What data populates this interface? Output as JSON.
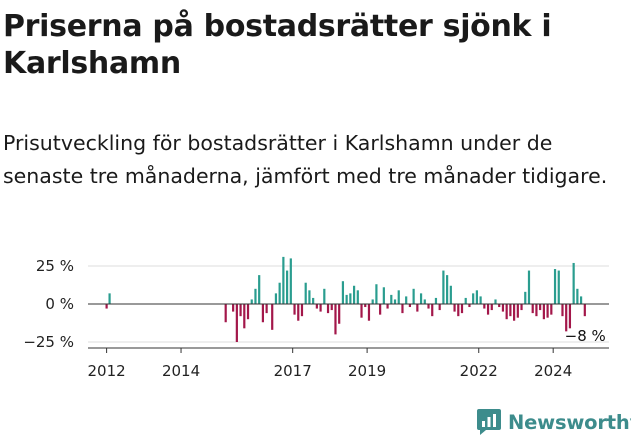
{
  "header": {
    "title": "Priserna på bostadsrätter sjönk i Karlshamn",
    "subtitle": "Prisutveckling för bostadsrätter i Karlshamn under de senaste tre månaderna, jämfört med tre månader tidigare."
  },
  "brand": {
    "name": "Newsworthy",
    "icon": "newsworthy-logo-icon",
    "color": "#3d8c8c"
  },
  "colors": {
    "positive": "#2a9d8f",
    "negative": "#a3174a",
    "zero_line": "#333333",
    "grid": "#dddddd"
  },
  "chart_data": {
    "type": "bar",
    "ylabel": "",
    "xlabel": "",
    "y_unit": "%",
    "ylim": [
      -28,
      33
    ],
    "y_ticks": [
      25,
      0,
      -25
    ],
    "y_tick_labels": [
      "25 %",
      "0 %",
      "−25 %"
    ],
    "x_range": [
      2011.5,
      2025.5
    ],
    "x_ticks": [
      2012,
      2014,
      2017,
      2019,
      2022,
      2024
    ],
    "x_tick_labels": [
      "2012",
      "2014",
      "2017",
      "2019",
      "2022",
      "2024"
    ],
    "grid": true,
    "end_label": "−8 %",
    "series": [
      {
        "x": [
          2012.0,
          2012.08,
          2015.2,
          2015.4,
          2015.5,
          2015.6,
          2015.7,
          2015.8,
          2015.9,
          2016.0,
          2016.1,
          2016.2,
          2016.3,
          2016.45,
          2016.55,
          2016.65,
          2016.75,
          2016.85,
          2016.95,
          2017.05,
          2017.15,
          2017.25,
          2017.35,
          2017.45,
          2017.55,
          2017.65,
          2017.75,
          2017.85,
          2017.95,
          2018.05,
          2018.15,
          2018.25,
          2018.35,
          2018.45,
          2018.55,
          2018.65,
          2018.75,
          2018.85,
          2018.95,
          2019.05,
          2019.15,
          2019.25,
          2019.35,
          2019.45,
          2019.55,
          2019.65,
          2019.75,
          2019.85,
          2019.95,
          2020.05,
          2020.15,
          2020.25,
          2020.35,
          2020.45,
          2020.55,
          2020.65,
          2020.75,
          2020.85,
          2020.95,
          2021.05,
          2021.15,
          2021.25,
          2021.35,
          2021.45,
          2021.55,
          2021.65,
          2021.75,
          2021.85,
          2021.95,
          2022.05,
          2022.15,
          2022.25,
          2022.35,
          2022.45,
          2022.55,
          2022.65,
          2022.75,
          2022.85,
          2022.95,
          2023.05,
          2023.15,
          2023.25,
          2023.35,
          2023.45,
          2023.55,
          2023.65,
          2023.75,
          2023.85,
          2023.95,
          2024.05,
          2024.15,
          2024.25,
          2024.35,
          2024.45,
          2024.55,
          2024.65,
          2024.75,
          2024.85
        ],
        "values": [
          -3,
          7,
          -12,
          -5,
          -25,
          -8,
          -16,
          -10,
          3,
          10,
          19,
          -12,
          -6,
          -17,
          7,
          14,
          31,
          22,
          30,
          -7,
          -11,
          -8,
          14,
          9,
          4,
          -3,
          -5,
          10,
          -6,
          -4,
          -20,
          -13,
          15,
          6,
          7,
          12,
          9,
          -9,
          -2,
          -11,
          3,
          13,
          -7,
          11,
          -3,
          6,
          3,
          9,
          -6,
          5,
          -2,
          10,
          -5,
          7,
          3,
          -3,
          -8,
          4,
          -4,
          22,
          19,
          12,
          -5,
          -8,
          -6,
          4,
          -2,
          7,
          9,
          5,
          -3,
          -7,
          -4,
          3,
          -2,
          -5,
          -10,
          -8,
          -11,
          -9,
          -4,
          8,
          22,
          -6,
          -8,
          -4,
          -10,
          -9,
          -7,
          23,
          22,
          -8,
          -18,
          -16,
          27,
          10,
          5,
          -8
        ]
      }
    ]
  }
}
